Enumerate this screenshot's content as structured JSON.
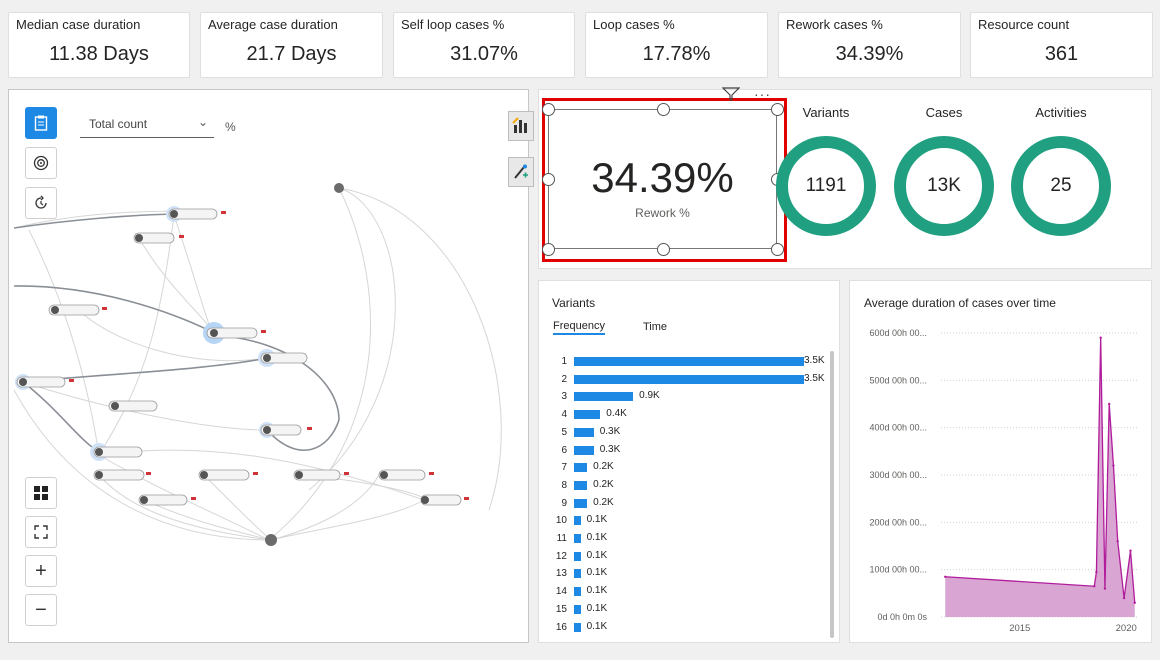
{
  "kpis": [
    {
      "title": "Median case duration",
      "value": "11.38 Days"
    },
    {
      "title": "Average case duration",
      "value": "21.7 Days"
    },
    {
      "title": "Self loop cases %",
      "value": "31.07%"
    },
    {
      "title": "Loop cases %",
      "value": "17.78%"
    },
    {
      "title": "Rework cases %",
      "value": "34.39%"
    },
    {
      "title": "Resource count",
      "value": "361"
    }
  ],
  "process_map": {
    "metric_select": "Total count",
    "percent_label": "%"
  },
  "card": {
    "value": "34.39%",
    "label": "Rework %"
  },
  "rings": [
    {
      "title": "Variants",
      "value": "1191"
    },
    {
      "title": "Cases",
      "value": "13K"
    },
    {
      "title": "Activities",
      "value": "25"
    }
  ],
  "variants": {
    "title": "Variants",
    "tabs": [
      "Frequency",
      "Time"
    ],
    "active_tab": "Frequency",
    "rows": [
      {
        "idx": "1",
        "label": "3.5K",
        "value": 3.5
      },
      {
        "idx": "2",
        "label": "3.5K",
        "value": 3.5
      },
      {
        "idx": "3",
        "label": "0.9K",
        "value": 0.9
      },
      {
        "idx": "4",
        "label": "0.4K",
        "value": 0.4
      },
      {
        "idx": "5",
        "label": "0.3K",
        "value": 0.3
      },
      {
        "idx": "6",
        "label": "0.3K",
        "value": 0.3
      },
      {
        "idx": "7",
        "label": "0.2K",
        "value": 0.2
      },
      {
        "idx": "8",
        "label": "0.2K",
        "value": 0.2
      },
      {
        "idx": "9",
        "label": "0.2K",
        "value": 0.2
      },
      {
        "idx": "10",
        "label": "0.1K",
        "value": 0.1
      },
      {
        "idx": "11",
        "label": "0.1K",
        "value": 0.1
      },
      {
        "idx": "12",
        "label": "0.1K",
        "value": 0.1
      },
      {
        "idx": "13",
        "label": "0.1K",
        "value": 0.1
      },
      {
        "idx": "14",
        "label": "0.1K",
        "value": 0.1
      },
      {
        "idx": "15",
        "label": "0.1K",
        "value": 0.1
      },
      {
        "idx": "16",
        "label": "0.1K",
        "value": 0.1
      }
    ]
  },
  "duration_chart": {
    "title": "Average duration of cases over time",
    "y_ticks": [
      "600d 00h 00...",
      "500d 00h 00...",
      "400d 00h 00...",
      "300d 00h 00...",
      "200d 00h 00...",
      "100d 00h 00...",
      "0d 0h 0m 0s"
    ],
    "x_ticks": [
      "2015",
      "2020"
    ],
    "color": "#b01c9a"
  },
  "chart_data": {
    "type": "area",
    "title": "Average duration of cases over time",
    "x_ticks": [
      "2015",
      "2020"
    ],
    "ylim_days": [
      0,
      600
    ],
    "series": [
      {
        "x": [
          2011.5,
          2018.5,
          2018.6,
          2018.8,
          2019.0,
          2019.2,
          2019.4,
          2019.6,
          2019.9,
          2020.2,
          2020.4
        ],
        "y_days": [
          85,
          65,
          95,
          590,
          60,
          450,
          320,
          160,
          40,
          140,
          30
        ]
      }
    ],
    "grid": true
  },
  "colors": {
    "accent": "#1e88e5",
    "ring": "#20a081",
    "selection": "#e00000"
  }
}
